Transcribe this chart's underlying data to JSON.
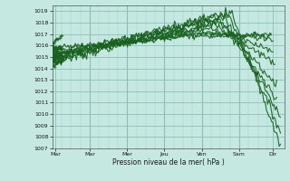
{
  "title": "",
  "xlabel": "Pression niveau de la mer( hPa )",
  "xlim": [
    0,
    6.2
  ],
  "ylim": [
    1007,
    1019.5
  ],
  "yticks": [
    1007,
    1008,
    1009,
    1010,
    1011,
    1012,
    1013,
    1014,
    1015,
    1016,
    1017,
    1018,
    1019
  ],
  "xtick_labels": [
    "Mar",
    "Mar",
    "Mer",
    "Jeu",
    "Ven",
    "Sam",
    "Dir"
  ],
  "xtick_positions": [
    0.08,
    1.0,
    2.0,
    3.0,
    4.0,
    5.0,
    5.9
  ],
  "bg_color": "#c5e8e0",
  "grid_color_major": "#8bbfb8",
  "grid_color_minor": "#a8d4ce",
  "line_color": "#1a6020"
}
